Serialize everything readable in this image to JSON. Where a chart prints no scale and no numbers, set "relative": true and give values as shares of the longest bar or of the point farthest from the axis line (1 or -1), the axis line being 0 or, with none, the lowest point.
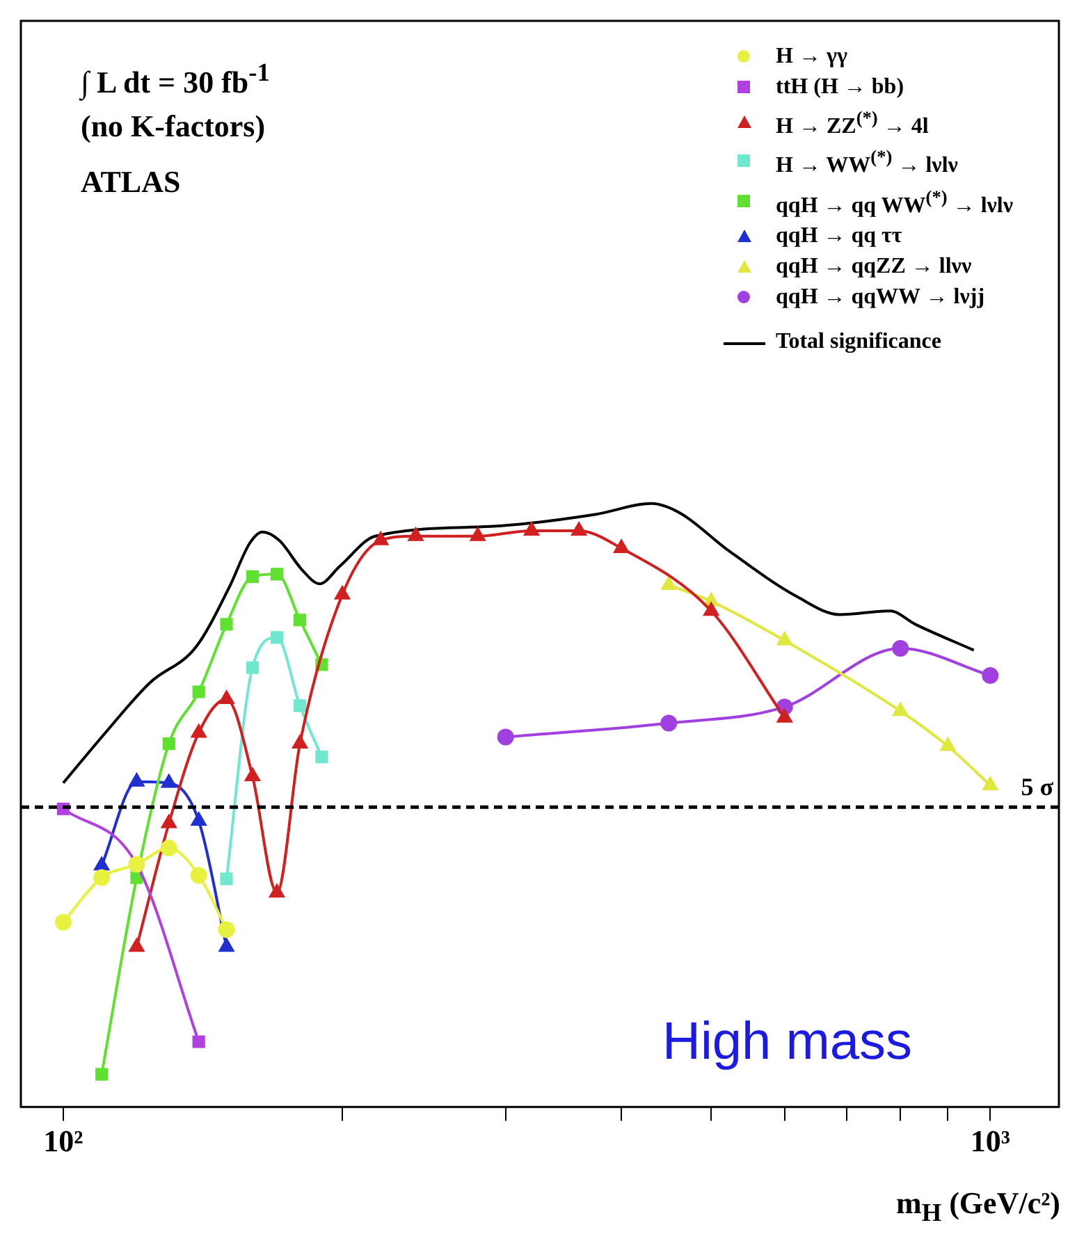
{
  "chart_data": {
    "type": "line",
    "relative": true,
    "log": "x",
    "xlim": [
      90,
      1186
    ],
    "xticks": [
      {
        "value": 100,
        "label": "10²"
      },
      {
        "value": 200,
        "label": null
      },
      {
        "value": 300,
        "label": null
      },
      {
        "value": 400,
        "label": null
      },
      {
        "value": 500,
        "label": null
      },
      {
        "value": 600,
        "label": null
      },
      {
        "value": 700,
        "label": null
      },
      {
        "value": 800,
        "label": null
      },
      {
        "value": 900,
        "label": null
      },
      {
        "value": 1000,
        "label": "10³"
      }
    ],
    "xlabel": "m$_{H}$ (GeV/c²)",
    "legend": "top right",
    "annotations": [
      "∫ L dt = 30 fb$^{-1}$",
      "(no K-factors)",
      "ATLAS",
      "High mass"
    ],
    "ref_lines": [
      {
        "axis": "y",
        "value": 0.497,
        "label": "5 σ",
        "line_style": "dashed",
        "color": "#000000"
      }
    ],
    "series": [
      {
        "name": "H → γγ",
        "color": "#e8f040",
        "marker": "circle",
        "x": [
          100,
          110,
          120,
          130,
          140,
          150
        ],
        "values": [
          0.306,
          0.38,
          0.402,
          0.429,
          0.384,
          0.294
        ]
      },
      {
        "name": "ttH (H → bb)",
        "color": "#b040e0",
        "marker": "square",
        "x": [
          100,
          120,
          140
        ],
        "values": [
          0.494,
          0.402,
          0.108
        ]
      },
      {
        "name": "H → ZZ$^{(*)}$ → 4l",
        "color": "#d02020",
        "marker": "triangle",
        "x": [
          120,
          130,
          140,
          150,
          160,
          170,
          180,
          200,
          220,
          240,
          280,
          320,
          360,
          400,
          500,
          600
        ],
        "values": [
          0.265,
          0.47,
          0.62,
          0.676,
          0.548,
          0.355,
          0.602,
          0.849,
          0.939,
          0.946,
          0.946,
          0.955,
          0.955,
          0.926,
          0.822,
          0.645
        ]
      },
      {
        "name": "H → WW$^{(*)}$ → lνlν",
        "color": "#70e8d0",
        "marker": "square",
        "x": [
          150,
          160,
          170,
          180,
          190
        ],
        "values": [
          0.378,
          0.728,
          0.778,
          0.665,
          0.58
        ]
      },
      {
        "name": "qqH → qq WW$^{(*)}$ → lνlν",
        "color": "#60e030",
        "marker": "square",
        "x": [
          110,
          120,
          130,
          140,
          150,
          160,
          170,
          180,
          190
        ],
        "values": [
          0.054,
          0.38,
          0.602,
          0.688,
          0.8,
          0.879,
          0.883,
          0.807,
          0.733
        ]
      },
      {
        "name": "qqH → qq ττ",
        "color": "#2030d0",
        "marker": "triangle",
        "x": [
          110,
          120,
          130,
          140,
          150
        ],
        "values": [
          0.4,
          0.539,
          0.537,
          0.474,
          0.265
        ]
      },
      {
        "name": "qqH → qqZZ → llνν",
        "color": "#e0e840",
        "marker": "triangle",
        "x": [
          450,
          500,
          600,
          800,
          900,
          1000
        ],
        "values": [
          0.865,
          0.838,
          0.773,
          0.656,
          0.598,
          0.533
        ]
      },
      {
        "name": "qqH → qqWW → lνjj",
        "color": "#a040e0",
        "marker": "circle",
        "x": [
          300,
          450,
          600,
          800,
          1000
        ],
        "values": [
          0.613,
          0.636,
          0.663,
          0.76,
          0.715
        ]
      },
      {
        "name": "Total significance",
        "color": "#000000",
        "marker": "none",
        "x": [
          100,
          111,
          124,
          139,
          151,
          159,
          164,
          171,
          181,
          189,
          199,
          217,
          289,
          375,
          431,
          463,
          520,
          620,
          688,
          780,
          830,
          960
        ],
        "values": [
          0.537,
          0.62,
          0.703,
          0.762,
          0.861,
          0.935,
          0.953,
          0.939,
          0.89,
          0.867,
          0.897,
          0.946,
          0.962,
          0.982,
          1,
          0.984,
          0.924,
          0.845,
          0.816,
          0.822,
          0.8,
          0.757
        ]
      }
    ]
  }
}
